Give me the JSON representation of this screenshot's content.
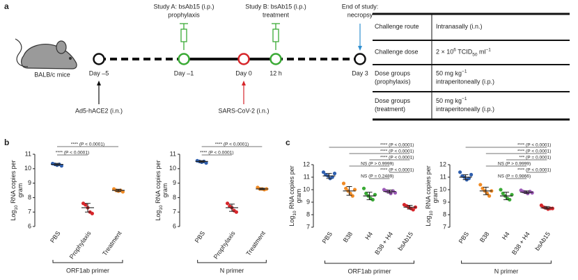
{
  "panel_labels": [
    "a",
    "b",
    "c"
  ],
  "timeline": {
    "subject": "BALB/c mice",
    "days": [
      {
        "label": "Day –5",
        "color": "#111111",
        "below": [
          "Ad5-hACE2 (i.n.)"
        ],
        "below_color": "#111111"
      },
      {
        "label": "Day –1",
        "color": "#3aaa35",
        "above": [
          "Study A: bsAb15 (i.p.)",
          "prophylaxis"
        ],
        "above_color": "#3aaa35"
      },
      {
        "label": "Day 0",
        "color": "#d7262b",
        "below": [
          "SARS-CoV-2 (i.n.)"
        ],
        "below_color": "#d7262b"
      },
      {
        "label": "12 h",
        "color": "#3aaa35",
        "above": [
          "Study B: bsAb15 (i.p.)",
          "treatment"
        ],
        "above_color": "#3aaa35"
      },
      {
        "label": "Day 3",
        "color": "#111111",
        "above": [
          "End of study:",
          "necropsy"
        ],
        "above_color": "#2f8fd0"
      }
    ]
  },
  "table": {
    "rows": [
      [
        [
          [
            "Challenge route"
          ]
        ],
        [
          [
            "Intranasally (i.n.)"
          ]
        ]
      ],
      [
        [
          [
            "Challenge dose"
          ]
        ],
        [
          [
            "2 × 10",
            {
              "sup": "6"
            },
            " TCID",
            {
              "sub": "50"
            },
            " ml",
            {
              "sup": "−1"
            }
          ]
        ]
      ],
      [
        [
          [
            "Dose groups"
          ],
          [
            "(prophylaxis)"
          ]
        ],
        [
          [
            "50 mg kg",
            {
              "sup": "−1"
            }
          ],
          [
            "intraperitoneally (i.p.)"
          ]
        ]
      ],
      [
        [
          [
            "Dose groups"
          ],
          [
            "(treatment)"
          ]
        ],
        [
          [
            "50 mg kg",
            {
              "sup": "−1"
            }
          ],
          [
            "intraperitoneally (i.p.)"
          ]
        ]
      ]
    ]
  },
  "chart_data": [
    {
      "type": "dot",
      "ylabel": [
        [
          "Log",
          {
            "sub": "10"
          },
          " RNA copies per"
        ],
        [
          "gram"
        ]
      ],
      "categories": [
        "PBS",
        "Prophylaxis",
        "Treatment"
      ],
      "colors": [
        "#2f5fae",
        "#d7262b",
        "#f08a24"
      ],
      "points": [
        [
          10.35,
          10.3,
          10.25,
          10.3,
          10.2
        ],
        [
          7.6,
          7.5,
          7.3,
          7.0,
          6.9
        ],
        [
          8.6,
          8.5,
          8.45,
          8.5,
          8.4
        ]
      ],
      "mean": [
        10.3,
        7.3,
        8.5
      ],
      "sd": [
        0.07,
        0.3,
        0.08
      ],
      "ylim": [
        6,
        11
      ],
      "yticks": [
        6,
        7,
        8,
        9,
        10,
        11
      ],
      "comparisons": [
        {
          "between": [
            "PBS",
            "Treatment"
          ],
          "label": "**** (P < 0.0001)"
        },
        {
          "between": [
            "PBS",
            "Prophylaxis"
          ],
          "label": "**** (P < 0.0001)"
        }
      ],
      "xlabel": "ORF1ab primer"
    },
    {
      "type": "dot",
      "ylabel": [
        [
          "Log",
          {
            "sub": "10"
          },
          " RNA copies per"
        ],
        [
          "gram"
        ]
      ],
      "categories": [
        "PBS",
        "Prophylaxis",
        "Treatment"
      ],
      "colors": [
        "#2f5fae",
        "#d7262b",
        "#f08a24"
      ],
      "points": [
        [
          10.55,
          10.5,
          10.45,
          10.5,
          10.4
        ],
        [
          7.6,
          7.4,
          7.3,
          7.1,
          7.0
        ],
        [
          8.7,
          8.6,
          8.6,
          8.55,
          8.6
        ]
      ],
      "mean": [
        10.5,
        7.3,
        8.6
      ],
      "sd": [
        0.06,
        0.25,
        0.05
      ],
      "ylim": [
        6,
        11
      ],
      "yticks": [
        6,
        7,
        8,
        9,
        10,
        11
      ],
      "comparisons": [
        {
          "between": [
            "PBS",
            "Treatment"
          ],
          "label": "**** (P < 0.0001)"
        },
        {
          "between": [
            "PBS",
            "Prophylaxis"
          ],
          "label": "**** (P < 0.0001)"
        }
      ],
      "xlabel": "N primer"
    },
    {
      "type": "dot",
      "ylabel": [
        [
          "Log",
          {
            "sub": "10"
          },
          " RNA copies per"
        ],
        [
          "gram"
        ]
      ],
      "categories": [
        "PBS",
        "B38",
        "H4",
        "B38 + H4",
        "bsAb15"
      ],
      "colors": [
        "#2f5fae",
        "#f08a24",
        "#3aaa35",
        "#9b59b6",
        "#d7262b"
      ],
      "points": [
        [
          11.4,
          11.2,
          11.1,
          10.9,
          11.0,
          11.3
        ],
        [
          10.5,
          10.1,
          9.9,
          9.7,
          9.5,
          10.0
        ],
        [
          10.1,
          9.7,
          9.5,
          9.3,
          9.2,
          9.6
        ],
        [
          10.0,
          9.9,
          9.85,
          9.7,
          9.9,
          9.75
        ],
        [
          8.8,
          8.7,
          8.6,
          8.5,
          8.4,
          8.6
        ]
      ],
      "mean": [
        11.1,
        9.9,
        9.5,
        9.85,
        8.6
      ],
      "sd": [
        0.2,
        0.35,
        0.3,
        0.12,
        0.15
      ],
      "ylim": [
        7,
        12
      ],
      "yticks": [
        7,
        8,
        9,
        10,
        11,
        12
      ],
      "comparisons": [
        {
          "between": [
            "PBS",
            "bsAb15"
          ],
          "label": "**** (P < 0.0001)"
        },
        {
          "between": [
            "B38",
            "bsAb15"
          ],
          "label": "**** (P < 0.0001)"
        },
        {
          "between": [
            "H4",
            "bsAb15"
          ],
          "label": "**** (P < 0.0001)"
        },
        {
          "between": [
            "B38",
            "B38 + H4"
          ],
          "label": "NS (P > 0.9999)"
        },
        {
          "between": [
            "B38 + H4",
            "bsAb15"
          ],
          "label": "**** (P < 0.0001)"
        },
        {
          "between": [
            "H4",
            "B38 + H4"
          ],
          "label": "NS (P = 0.2489)"
        }
      ],
      "xlabel": "ORF1ab primer"
    },
    {
      "type": "dot",
      "ylabel": [
        [
          "Log",
          {
            "sub": "10"
          },
          " RNA copies per"
        ],
        [
          "gram"
        ]
      ],
      "categories": [
        "PBS",
        "B38",
        "H4",
        "B38 + H4",
        "bsAb15"
      ],
      "colors": [
        "#2f5fae",
        "#f08a24",
        "#3aaa35",
        "#9b59b6",
        "#d7262b"
      ],
      "points": [
        [
          11.4,
          11.1,
          11.0,
          10.8,
          10.9,
          11.2
        ],
        [
          10.4,
          10.1,
          9.9,
          9.7,
          9.5,
          9.9
        ],
        [
          10.0,
          9.7,
          9.5,
          9.3,
          9.2,
          9.6
        ],
        [
          9.95,
          9.85,
          9.8,
          9.7,
          9.85,
          9.75
        ],
        [
          8.75,
          8.6,
          8.55,
          8.45,
          8.5,
          8.5
        ]
      ],
      "mean": [
        11.0,
        9.9,
        9.5,
        9.8,
        8.55
      ],
      "sd": [
        0.2,
        0.3,
        0.3,
        0.1,
        0.1
      ],
      "ylim": [
        7,
        12
      ],
      "yticks": [
        7,
        8,
        9,
        10,
        11,
        12
      ],
      "comparisons": [
        {
          "between": [
            "PBS",
            "bsAb15"
          ],
          "label": "**** (P < 0.0001)"
        },
        {
          "between": [
            "B38",
            "bsAb15"
          ],
          "label": "**** (P < 0.0001)"
        },
        {
          "between": [
            "H4",
            "bsAb15"
          ],
          "label": "*** (P = 0.0001)"
        },
        {
          "between": [
            "B38",
            "B38 + H4"
          ],
          "label": "NS (P > 0.9999)"
        },
        {
          "between": [
            "B38 + H4",
            "bsAb15"
          ],
          "label": "**** (P < 0.0001)"
        },
        {
          "between": [
            "H4",
            "B38 + H4"
          ],
          "label": "NS (P = 0.9866)"
        }
      ],
      "xlabel": "N primer"
    }
  ]
}
